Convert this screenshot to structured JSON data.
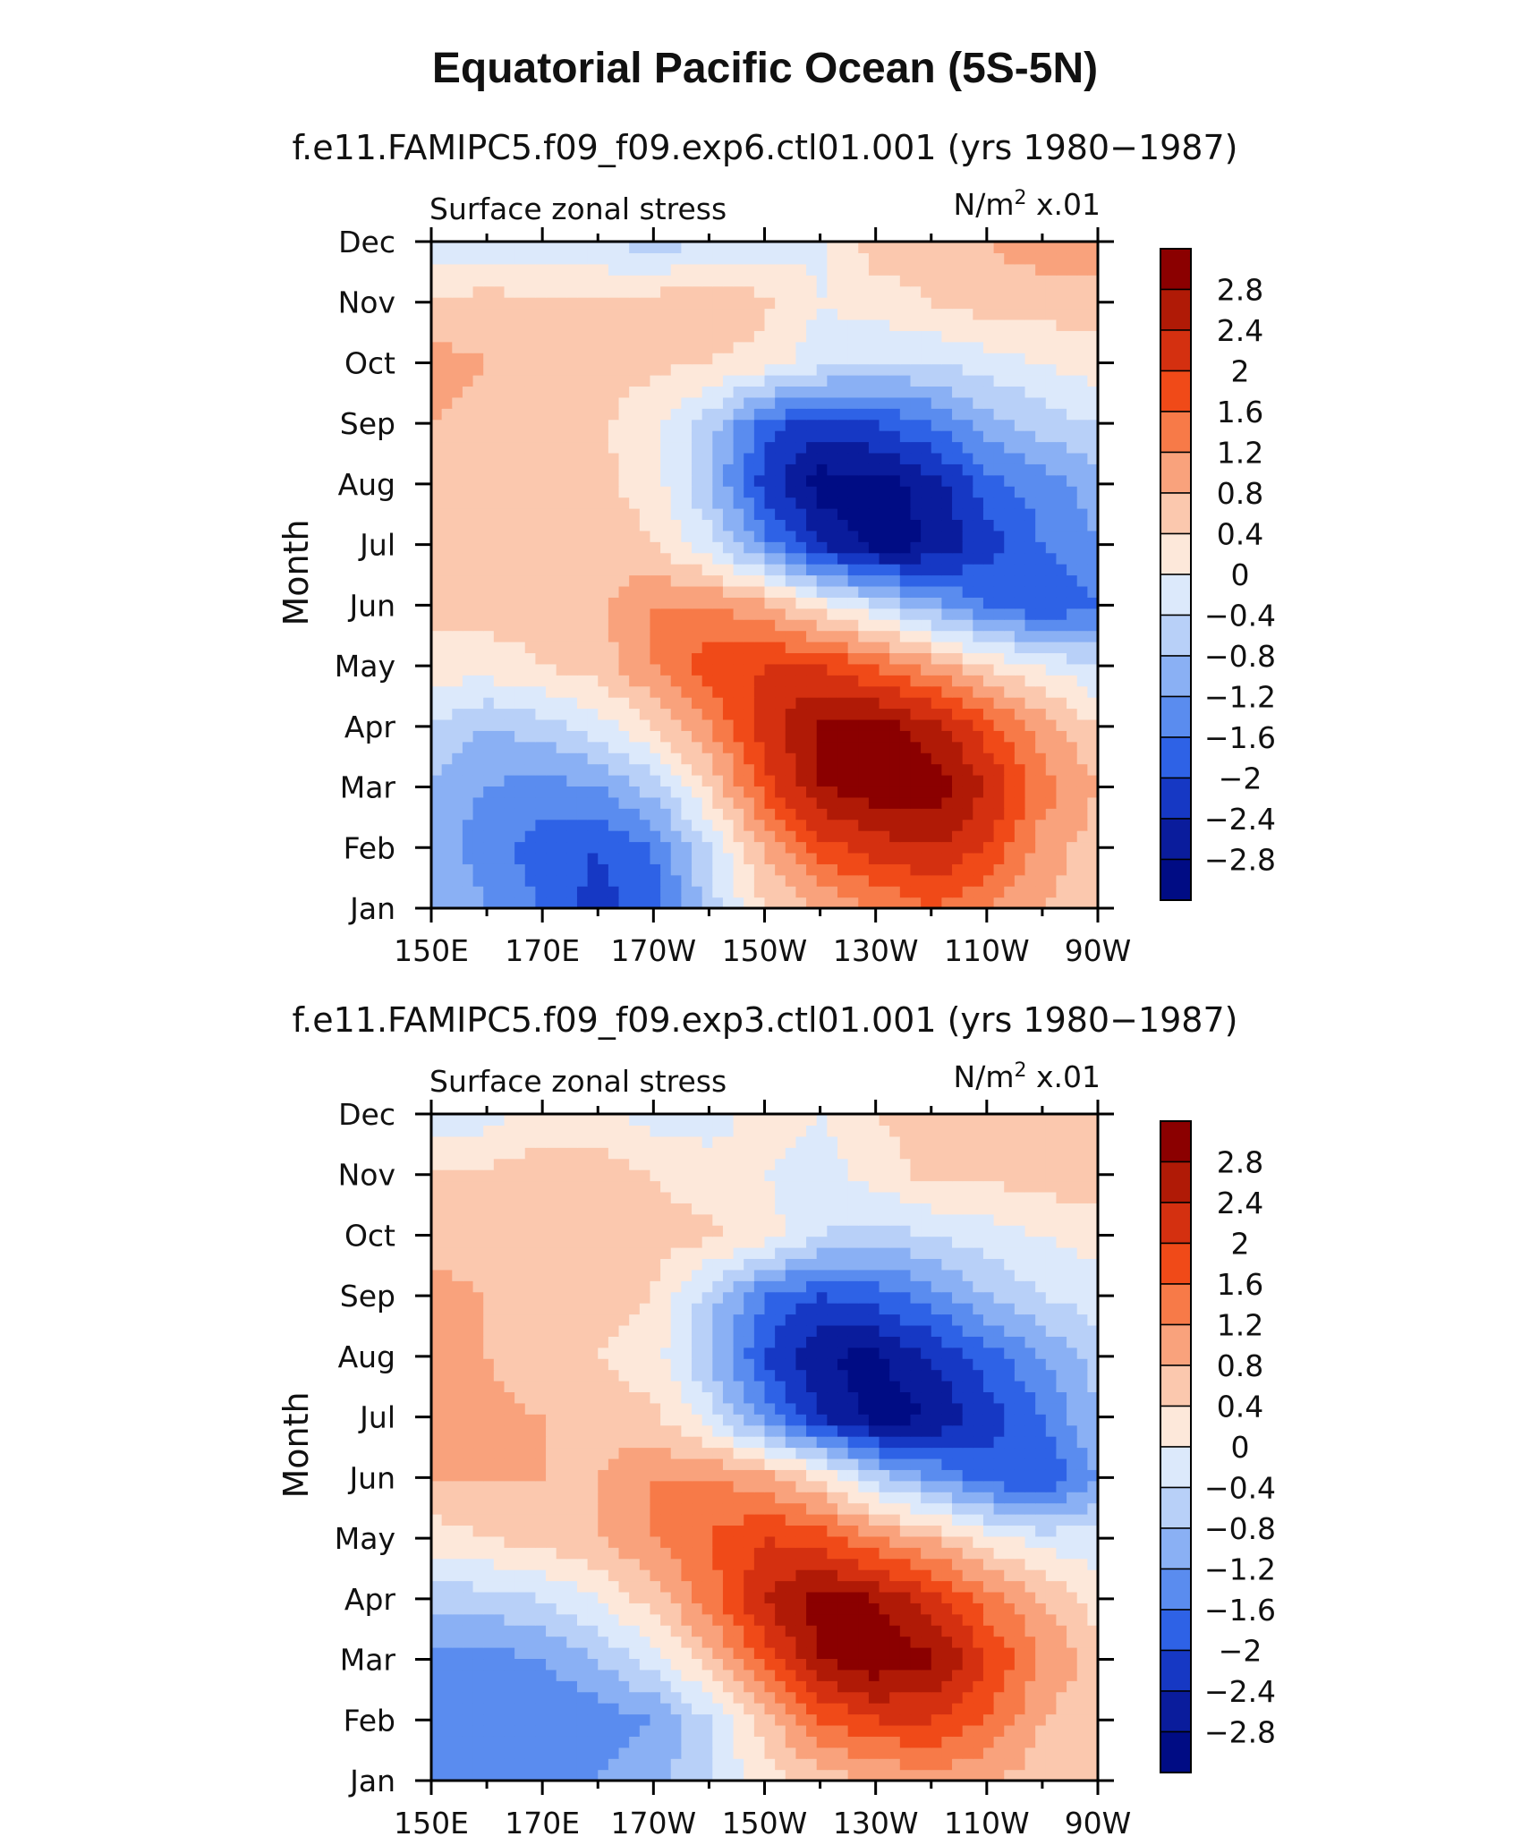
{
  "title": "Equatorial Pacific Ocean (5S-5N)",
  "shared": {
    "left_label": "Surface zonal stress",
    "units_prefix": "N/m",
    "units_power": "2",
    "units_suffix": "x.01",
    "ylabel": "Month",
    "x_tick_labels": [
      "150E",
      "170E",
      "170W",
      "150W",
      "130W",
      "110W",
      "90W"
    ],
    "y_tick_labels": [
      "Jan",
      "Feb",
      "Mar",
      "Apr",
      "May",
      "Jun",
      "Jul",
      "Aug",
      "Sep",
      "Oct",
      "Nov",
      "Dec"
    ]
  },
  "colorbar": {
    "labels": [
      "2.8",
      "2.4",
      "2",
      "1.6",
      "1.2",
      "0.8",
      "0.4",
      "0",
      "−0.4",
      "−0.8",
      "−1.2",
      "−1.6",
      "−2",
      "−2.4",
      "−2.8"
    ],
    "colors": [
      "#8b0000",
      "#b01a06",
      "#d43010",
      "#f04a18",
      "#f77a48",
      "#f9a27c",
      "#fbc8ae",
      "#fde8da",
      "#dce9fb",
      "#b8d0f8",
      "#8ab0f4",
      "#5a8cef",
      "#2e62e6",
      "#1638c4",
      "#0a1c9c",
      "#000c84"
    ]
  },
  "chart_data": [
    {
      "type": "heatmap",
      "subtitle": "f.e11.FAMIPC5.f09_f09.exp6.ctl01.001 (yrs 1980−1987)",
      "x": [
        "150E",
        "160E",
        "170E",
        "180",
        "170W",
        "160W",
        "150W",
        "140W",
        "130W",
        "120W",
        "110W",
        "100W",
        "90W"
      ],
      "y": [
        "Jan",
        "Feb",
        "Mar",
        "Apr",
        "May",
        "Jun",
        "Jul",
        "Aug",
        "Sep",
        "Oct",
        "Nov",
        "Dec"
      ],
      "values": [
        [
          -0.8,
          -1.2,
          -1.6,
          -2.2,
          -1.8,
          -0.6,
          0.4,
          0.8,
          1.2,
          1.6,
          1.2,
          0.8,
          0.6
        ],
        [
          -1.0,
          -1.4,
          -1.8,
          -2.0,
          -1.6,
          -0.4,
          0.8,
          1.8,
          2.2,
          2.4,
          2.0,
          1.0,
          0.6
        ],
        [
          -0.9,
          -1.2,
          -1.4,
          -1.2,
          -0.6,
          0.4,
          1.8,
          2.8,
          3.1,
          3.1,
          2.4,
          1.4,
          0.8
        ],
        [
          -0.4,
          -0.8,
          -0.6,
          -0.2,
          0.4,
          1.2,
          2.2,
          2.9,
          3.0,
          2.6,
          1.8,
          1.0,
          0.4
        ],
        [
          0.2,
          0.2,
          0.4,
          0.6,
          1.2,
          1.8,
          2.0,
          2.0,
          1.6,
          1.0,
          0.4,
          0.0,
          -0.4
        ],
        [
          0.5,
          0.6,
          0.5,
          0.7,
          1.2,
          1.2,
          0.9,
          0.2,
          -0.4,
          -1.0,
          -1.6,
          -2.0,
          -1.6
        ],
        [
          0.8,
          0.8,
          0.6,
          0.7,
          0.4,
          -0.2,
          -1.4,
          -2.4,
          -3.0,
          -2.8,
          -2.2,
          -1.6,
          -1.2
        ],
        [
          0.6,
          0.5,
          0.6,
          0.5,
          0.2,
          -0.8,
          -2.2,
          -3.0,
          -3.0,
          -2.6,
          -1.8,
          -1.4,
          -1.0
        ],
        [
          0.8,
          0.6,
          0.6,
          0.5,
          0.1,
          -0.6,
          -1.8,
          -2.2,
          -2.0,
          -1.6,
          -1.0,
          -0.6,
          -0.4
        ],
        [
          1.0,
          0.8,
          0.8,
          0.6,
          0.5,
          0.4,
          0.2,
          -0.2,
          -0.4,
          -0.4,
          -0.2,
          0.0,
          0.2
        ],
        [
          0.4,
          0.6,
          0.4,
          0.5,
          0.6,
          0.8,
          0.5,
          0.0,
          0.2,
          0.4,
          0.6,
          0.6,
          0.6
        ],
        [
          -0.2,
          -0.3,
          -0.2,
          -0.4,
          -0.6,
          -0.4,
          -0.2,
          -0.1,
          0.6,
          0.6,
          0.8,
          1.0,
          1.0
        ]
      ]
    },
    {
      "type": "heatmap",
      "subtitle": "f.e11.FAMIPC5.f09_f09.exp3.ctl01.001 (yrs 1980−1987)",
      "x": [
        "150E",
        "160E",
        "170E",
        "180",
        "170W",
        "160W",
        "150W",
        "140W",
        "130W",
        "120W",
        "110W",
        "100W",
        "90W"
      ],
      "y": [
        "Jan",
        "Feb",
        "Mar",
        "Apr",
        "May",
        "Jun",
        "Jul",
        "Aug",
        "Sep",
        "Oct",
        "Nov",
        "Dec"
      ],
      "values": [
        [
          -1.2,
          -1.4,
          -1.4,
          -1.2,
          -1.0,
          -0.4,
          0.2,
          0.6,
          0.8,
          1.0,
          0.8,
          0.6,
          0.4
        ],
        [
          -1.4,
          -1.6,
          -1.6,
          -1.4,
          -1.2,
          -0.4,
          0.6,
          1.6,
          2.0,
          2.0,
          1.6,
          0.8,
          0.4
        ],
        [
          -1.4,
          -1.4,
          -1.2,
          -0.8,
          -0.2,
          0.6,
          1.8,
          2.8,
          3.1,
          2.9,
          2.0,
          1.2,
          0.6
        ],
        [
          -0.6,
          -0.6,
          -0.4,
          0.0,
          0.6,
          1.4,
          2.4,
          3.0,
          2.8,
          2.2,
          1.4,
          0.8,
          0.2
        ],
        [
          0.2,
          0.4,
          0.6,
          0.8,
          1.2,
          1.6,
          2.0,
          1.8,
          1.2,
          0.8,
          0.2,
          -0.2,
          -0.2
        ],
        [
          0.8,
          0.8,
          0.8,
          0.8,
          1.2,
          1.2,
          1.0,
          0.4,
          -0.6,
          -1.2,
          -1.8,
          -2.0,
          -1.2
        ],
        [
          1.2,
          0.9,
          0.8,
          0.6,
          0.5,
          -0.2,
          -1.4,
          -2.4,
          -3.0,
          -2.8,
          -2.2,
          -1.6,
          -0.8
        ],
        [
          0.8,
          0.8,
          0.6,
          0.4,
          0.2,
          -0.8,
          -2.0,
          -2.8,
          -2.9,
          -2.4,
          -1.8,
          -1.2,
          -0.6
        ],
        [
          1.0,
          0.8,
          0.6,
          0.6,
          0.4,
          -0.6,
          -1.6,
          -2.0,
          -1.8,
          -1.4,
          -0.8,
          -0.4,
          -0.2
        ],
        [
          0.6,
          0.4,
          0.4,
          0.4,
          0.5,
          0.5,
          0.2,
          -0.4,
          -0.6,
          -0.4,
          -0.2,
          0.0,
          0.2
        ],
        [
          0.4,
          0.5,
          0.6,
          0.6,
          0.4,
          0.2,
          0.0,
          -0.2,
          0.2,
          0.5,
          0.5,
          0.6,
          0.6
        ],
        [
          -0.2,
          -0.2,
          0.2,
          0.2,
          -0.2,
          -0.2,
          0.2,
          0.0,
          0.4,
          0.6,
          0.6,
          0.6,
          0.6
        ]
      ]
    }
  ]
}
